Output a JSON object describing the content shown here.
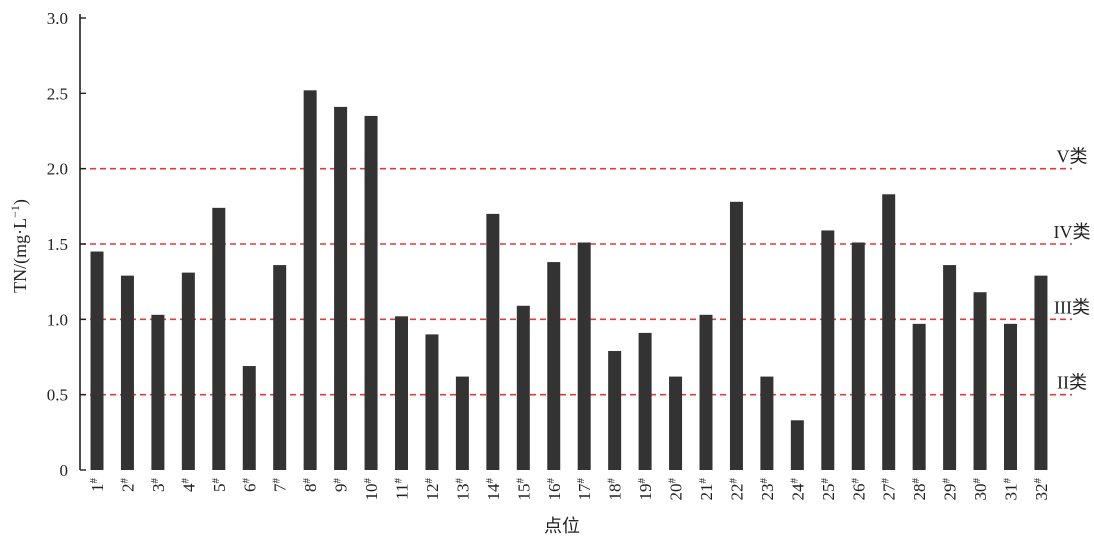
{
  "chart_data": {
    "type": "bar",
    "ylabel_main": "TN/(mg·L",
    "ylabel_sup": "−1",
    "ylabel_end": ")",
    "xlabel": "点位",
    "ylim": [
      0,
      3.0
    ],
    "yticks": [
      {
        "value": 0,
        "label": "0"
      },
      {
        "value": 0.5,
        "label": "0.5"
      },
      {
        "value": 1.0,
        "label": "1.0"
      },
      {
        "value": 1.5,
        "label": "1.5"
      },
      {
        "value": 2.0,
        "label": "2.0"
      },
      {
        "value": 2.5,
        "label": "2.5"
      },
      {
        "value": 3.0,
        "label": "3.0"
      }
    ],
    "categories": [
      "1",
      "2",
      "3",
      "4",
      "5",
      "6",
      "7",
      "8",
      "9",
      "10",
      "11",
      "12",
      "13",
      "14",
      "15",
      "16",
      "17",
      "18",
      "19",
      "20",
      "21",
      "22",
      "23",
      "24",
      "25",
      "26",
      "27",
      "28",
      "29",
      "30",
      "31",
      "32"
    ],
    "category_suffix": "#",
    "values": [
      1.45,
      1.29,
      1.03,
      1.31,
      1.74,
      0.69,
      1.36,
      2.52,
      2.41,
      2.35,
      1.02,
      0.9,
      0.62,
      1.7,
      1.09,
      1.38,
      1.51,
      0.79,
      0.91,
      0.62,
      1.03,
      1.78,
      0.62,
      0.33,
      1.59,
      1.51,
      1.83,
      0.97,
      1.36,
      1.18,
      0.97,
      1.29
    ],
    "reference_lines": [
      {
        "value": 2.0,
        "label": "V类"
      },
      {
        "value": 1.5,
        "label": "IV类"
      },
      {
        "value": 1.0,
        "label": "III类"
      },
      {
        "value": 0.5,
        "label": "II类"
      }
    ],
    "bar_color": "#333333",
    "ref_color": "#e23b3b",
    "grid": false,
    "legend": "none"
  }
}
